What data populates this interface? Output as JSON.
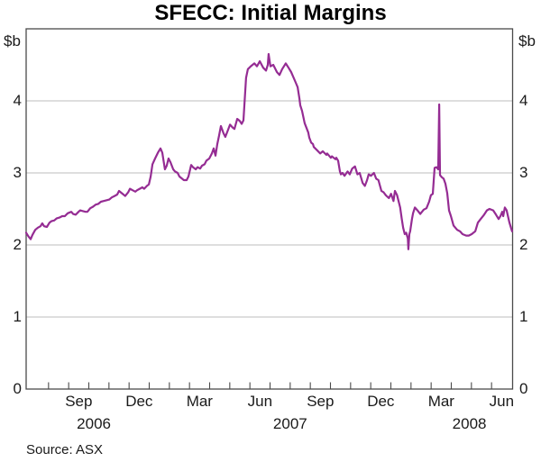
{
  "title": "SFECC: Initial Margins",
  "source_note": "Source: ASX",
  "axis_unit_label": "$b",
  "colors": {
    "line": "#952c93",
    "grid": "#c9c9c9",
    "axis": "#4a4a4a",
    "text": "#1a1a1a"
  },
  "y_axis": {
    "labels": [
      4,
      3,
      2,
      1,
      0
    ],
    "gridlines": [
      1,
      2,
      3,
      4
    ],
    "min": 0,
    "max": 5
  },
  "x_axis": {
    "month_labels": [
      {
        "text": "Sep",
        "center_month": 3.5
      },
      {
        "text": "Dec",
        "center_month": 6.5
      },
      {
        "text": "Mar",
        "center_month": 9.5
      },
      {
        "text": "Jun",
        "center_month": 12.5
      },
      {
        "text": "Sep",
        "center_month": 15.5
      },
      {
        "text": "Dec",
        "center_month": 18.5
      },
      {
        "text": "Mar",
        "center_month": 21.5
      },
      {
        "text": "Jun",
        "center_month": 24.5
      }
    ],
    "year_labels": [
      {
        "text": "2006",
        "center_month": 4.25
      },
      {
        "text": "2007",
        "center_month": 14.0
      },
      {
        "text": "2008",
        "center_month": 22.9
      }
    ],
    "minor_ticks_months": [
      2,
      3,
      4,
      5,
      6,
      7,
      8,
      9,
      10,
      11,
      12,
      13,
      14,
      15,
      16,
      17,
      18,
      19,
      20,
      21,
      22,
      23,
      24
    ]
  },
  "chart_data": {
    "type": "line",
    "title": "SFECC: Initial Margins",
    "ylabel": "$b",
    "ylim": [
      0,
      5
    ],
    "grid": "horizontal",
    "x_encoding": "months since 2006-06-01 (m=1 is 2006-07-01); span late Jun 2006 to end Jun 2008",
    "series": [
      {
        "name": "SFECC initial margins ($b)",
        "color": "#952c93",
        "points": [
          [
            0.89,
            2.17
          ],
          [
            1.0,
            2.12
          ],
          [
            1.11,
            2.08
          ],
          [
            1.2,
            2.14
          ],
          [
            1.34,
            2.21
          ],
          [
            1.47,
            2.24
          ],
          [
            1.6,
            2.26
          ],
          [
            1.69,
            2.3
          ],
          [
            1.78,
            2.26
          ],
          [
            1.92,
            2.25
          ],
          [
            2.05,
            2.31
          ],
          [
            2.14,
            2.33
          ],
          [
            2.28,
            2.34
          ],
          [
            2.41,
            2.37
          ],
          [
            2.54,
            2.38
          ],
          [
            2.68,
            2.4
          ],
          [
            2.81,
            2.4
          ],
          [
            2.95,
            2.44
          ],
          [
            3.13,
            2.46
          ],
          [
            3.22,
            2.43
          ],
          [
            3.35,
            2.42
          ],
          [
            3.49,
            2.46
          ],
          [
            3.57,
            2.48
          ],
          [
            3.71,
            2.47
          ],
          [
            3.84,
            2.46
          ],
          [
            3.93,
            2.46
          ],
          [
            4.07,
            2.51
          ],
          [
            4.2,
            2.53
          ],
          [
            4.34,
            2.56
          ],
          [
            4.47,
            2.57
          ],
          [
            4.6,
            2.6
          ],
          [
            4.74,
            2.61
          ],
          [
            4.87,
            2.62
          ],
          [
            5.01,
            2.63
          ],
          [
            5.14,
            2.66
          ],
          [
            5.28,
            2.68
          ],
          [
            5.41,
            2.7
          ],
          [
            5.5,
            2.75
          ],
          [
            5.63,
            2.72
          ],
          [
            5.72,
            2.7
          ],
          [
            5.81,
            2.68
          ],
          [
            5.95,
            2.73
          ],
          [
            6.04,
            2.78
          ],
          [
            6.17,
            2.76
          ],
          [
            6.31,
            2.74
          ],
          [
            6.4,
            2.76
          ],
          [
            6.53,
            2.78
          ],
          [
            6.66,
            2.8
          ],
          [
            6.75,
            2.78
          ],
          [
            6.89,
            2.82
          ],
          [
            6.98,
            2.84
          ],
          [
            7.07,
            2.95
          ],
          [
            7.16,
            3.12
          ],
          [
            7.29,
            3.2
          ],
          [
            7.43,
            3.28
          ],
          [
            7.56,
            3.34
          ],
          [
            7.65,
            3.28
          ],
          [
            7.78,
            3.05
          ],
          [
            7.87,
            3.1
          ],
          [
            7.96,
            3.2
          ],
          [
            8.05,
            3.15
          ],
          [
            8.19,
            3.05
          ],
          [
            8.28,
            3.02
          ],
          [
            8.41,
            3.0
          ],
          [
            8.5,
            2.95
          ],
          [
            8.63,
            2.92
          ],
          [
            8.72,
            2.9
          ],
          [
            8.86,
            2.9
          ],
          [
            8.95,
            2.95
          ],
          [
            9.08,
            3.11
          ],
          [
            9.17,
            3.08
          ],
          [
            9.31,
            3.05
          ],
          [
            9.4,
            3.08
          ],
          [
            9.53,
            3.06
          ],
          [
            9.62,
            3.1
          ],
          [
            9.75,
            3.12
          ],
          [
            9.84,
            3.17
          ],
          [
            9.98,
            3.2
          ],
          [
            10.11,
            3.27
          ],
          [
            10.2,
            3.34
          ],
          [
            10.29,
            3.24
          ],
          [
            10.38,
            3.4
          ],
          [
            10.47,
            3.52
          ],
          [
            10.56,
            3.65
          ],
          [
            10.69,
            3.55
          ],
          [
            10.78,
            3.5
          ],
          [
            10.92,
            3.6
          ],
          [
            11.01,
            3.67
          ],
          [
            11.14,
            3.63
          ],
          [
            11.23,
            3.61
          ],
          [
            11.37,
            3.75
          ],
          [
            11.5,
            3.72
          ],
          [
            11.59,
            3.68
          ],
          [
            11.68,
            3.73
          ],
          [
            11.81,
            4.32
          ],
          [
            11.9,
            4.44
          ],
          [
            12.04,
            4.48
          ],
          [
            12.22,
            4.52
          ],
          [
            12.35,
            4.48
          ],
          [
            12.49,
            4.55
          ],
          [
            12.66,
            4.46
          ],
          [
            12.8,
            4.42
          ],
          [
            12.89,
            4.5
          ],
          [
            12.93,
            4.65
          ],
          [
            13.02,
            4.48
          ],
          [
            13.16,
            4.5
          ],
          [
            13.34,
            4.4
          ],
          [
            13.47,
            4.36
          ],
          [
            13.6,
            4.44
          ],
          [
            13.78,
            4.52
          ],
          [
            13.92,
            4.46
          ],
          [
            14.05,
            4.4
          ],
          [
            14.14,
            4.34
          ],
          [
            14.28,
            4.25
          ],
          [
            14.37,
            4.19
          ],
          [
            14.46,
            4.03
          ],
          [
            14.5,
            3.94
          ],
          [
            14.59,
            3.86
          ],
          [
            14.72,
            3.69
          ],
          [
            14.9,
            3.56
          ],
          [
            14.95,
            3.49
          ],
          [
            15.04,
            3.42
          ],
          [
            15.13,
            3.4
          ],
          [
            15.17,
            3.36
          ],
          [
            15.35,
            3.31
          ],
          [
            15.49,
            3.27
          ],
          [
            15.62,
            3.3
          ],
          [
            15.8,
            3.25
          ],
          [
            15.84,
            3.27
          ],
          [
            16.02,
            3.21
          ],
          [
            16.07,
            3.23
          ],
          [
            16.25,
            3.19
          ],
          [
            16.29,
            3.21
          ],
          [
            16.38,
            3.17
          ],
          [
            16.47,
            3.02
          ],
          [
            16.52,
            2.98
          ],
          [
            16.6,
            3.0
          ],
          [
            16.7,
            2.96
          ],
          [
            16.85,
            3.02
          ],
          [
            16.96,
            2.98
          ],
          [
            17.08,
            3.06
          ],
          [
            17.22,
            3.09
          ],
          [
            17.34,
            2.98
          ],
          [
            17.45,
            3.0
          ],
          [
            17.6,
            2.86
          ],
          [
            17.71,
            2.82
          ],
          [
            17.82,
            2.9
          ],
          [
            17.9,
            2.98
          ],
          [
            18.01,
            2.96
          ],
          [
            18.16,
            3.0
          ],
          [
            18.27,
            2.92
          ],
          [
            18.38,
            2.9
          ],
          [
            18.53,
            2.75
          ],
          [
            18.64,
            2.73
          ],
          [
            18.75,
            2.69
          ],
          [
            18.9,
            2.65
          ],
          [
            19.01,
            2.71
          ],
          [
            19.13,
            2.61
          ],
          [
            19.2,
            2.75
          ],
          [
            19.31,
            2.69
          ],
          [
            19.46,
            2.52
          ],
          [
            19.54,
            2.36
          ],
          [
            19.61,
            2.24
          ],
          [
            19.69,
            2.15
          ],
          [
            19.76,
            2.17
          ],
          [
            19.84,
            2.09
          ],
          [
            19.87,
            1.94
          ],
          [
            19.92,
            2.15
          ],
          [
            19.96,
            2.19
          ],
          [
            20.05,
            2.36
          ],
          [
            20.1,
            2.44
          ],
          [
            20.19,
            2.52
          ],
          [
            20.32,
            2.48
          ],
          [
            20.46,
            2.43
          ],
          [
            20.63,
            2.49
          ],
          [
            20.77,
            2.51
          ],
          [
            20.9,
            2.6
          ],
          [
            20.99,
            2.69
          ],
          [
            21.08,
            2.71
          ],
          [
            21.17,
            3.07
          ],
          [
            21.26,
            3.08
          ],
          [
            21.35,
            3.05
          ],
          [
            21.4,
            3.95
          ],
          [
            21.44,
            2.97
          ],
          [
            21.53,
            2.94
          ],
          [
            21.62,
            2.92
          ],
          [
            21.71,
            2.85
          ],
          [
            21.8,
            2.72
          ],
          [
            21.89,
            2.48
          ],
          [
            21.98,
            2.4
          ],
          [
            22.11,
            2.27
          ],
          [
            22.29,
            2.21
          ],
          [
            22.43,
            2.19
          ],
          [
            22.56,
            2.15
          ],
          [
            22.74,
            2.13
          ],
          [
            22.87,
            2.13
          ],
          [
            23.01,
            2.15
          ],
          [
            23.19,
            2.19
          ],
          [
            23.32,
            2.31
          ],
          [
            23.46,
            2.36
          ],
          [
            23.63,
            2.42
          ],
          [
            23.77,
            2.48
          ],
          [
            23.9,
            2.5
          ],
          [
            24.08,
            2.48
          ],
          [
            24.22,
            2.42
          ],
          [
            24.35,
            2.36
          ],
          [
            24.44,
            2.4
          ],
          [
            24.53,
            2.46
          ],
          [
            24.58,
            2.4
          ],
          [
            24.66,
            2.52
          ],
          [
            24.75,
            2.48
          ],
          [
            24.89,
            2.31
          ],
          [
            25.02,
            2.19
          ]
        ]
      }
    ]
  }
}
